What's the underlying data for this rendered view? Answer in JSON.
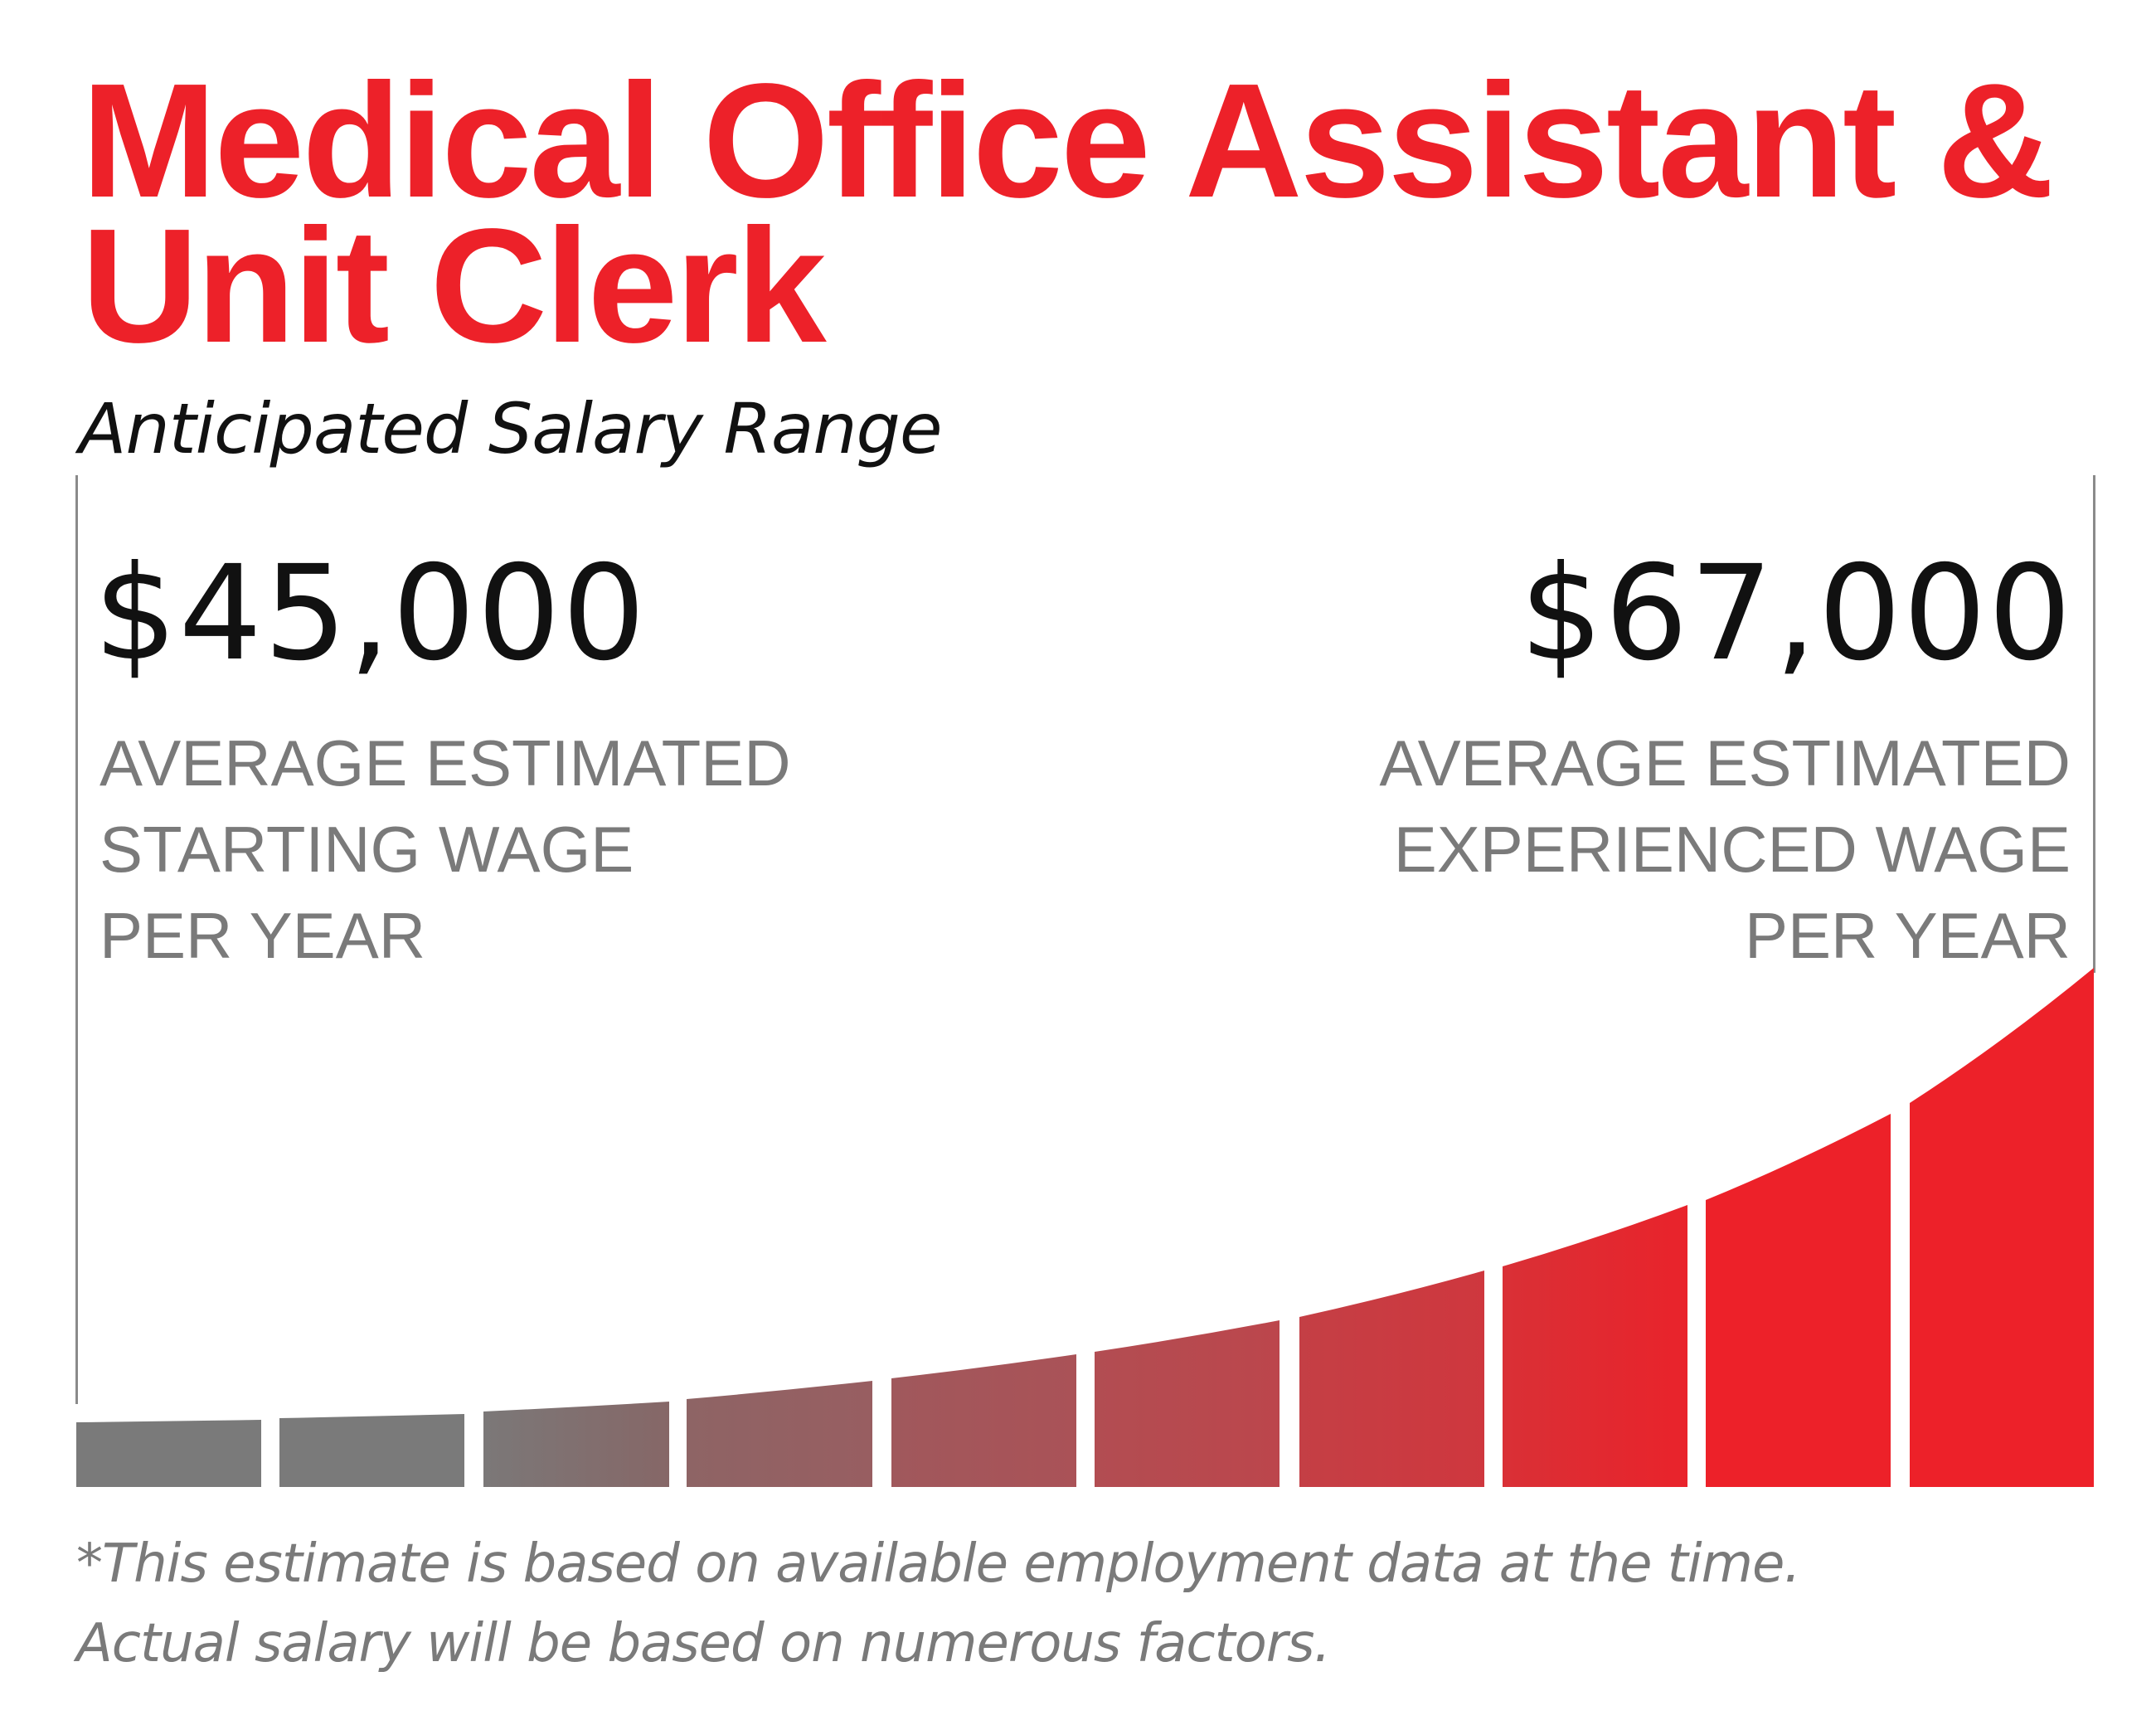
{
  "header": {
    "title_line1": "Medical Office Assistant &",
    "title_line2": "Unit Clerk",
    "subtitle": "Anticipated Salary Range"
  },
  "start": {
    "amount": "$45,000",
    "label_lines": [
      "AVERAGE ESTIMATED",
      "STARTING WAGE",
      "PER YEAR"
    ]
  },
  "end": {
    "amount": "$67,000",
    "label_lines": [
      "AVERAGE ESTIMATED",
      "EXPERIENCED WAGE",
      "PER YEAR"
    ]
  },
  "footnote": {
    "line1": "*This estimate is based on available employment data at the time.",
    "line2": "Actual salary will be based on numerous factors."
  },
  "colors": {
    "accent_red": "#ED2129",
    "gray_text": "#7A7A7A",
    "bar_gray": "#7A7A7A",
    "amount_text": "#111111"
  },
  "chart_data": {
    "type": "bar",
    "title": "Anticipated Salary Range",
    "categories": [
      "1",
      "2",
      "3",
      "4",
      "5",
      "6",
      "7",
      "8",
      "9",
      "10"
    ],
    "values": [
      45000,
      45200,
      45700,
      46600,
      47900,
      49800,
      52300,
      55600,
      60300,
      67000
    ],
    "xlabel": "",
    "ylabel": "",
    "ylim": [
      43000,
      67000
    ],
    "grid": false,
    "legend": null,
    "annotations": [
      {
        "position": "left",
        "text": "$45,000 AVERAGE ESTIMATED STARTING WAGE PER YEAR"
      },
      {
        "position": "right",
        "text": "$67,000 AVERAGE ESTIMATED EXPERIENCED WAGE PER YEAR"
      }
    ],
    "bars": [
      {
        "x0": 92,
        "x1": 315,
        "top_left": 1715,
        "top_right": 1712,
        "c0": "#7A7A7A",
        "c1": "#7A7A7A"
      },
      {
        "x0": 337,
        "x1": 560,
        "top_left": 1710,
        "top_right": 1705,
        "c0": "#7A7A7A",
        "c1": "#7A7A7A"
      },
      {
        "x0": 583,
        "x1": 807,
        "top_left": 1702,
        "top_right": 1690,
        "c0": "#7B7878",
        "c1": "#866767"
      },
      {
        "x0": 828,
        "x1": 1052,
        "top_left": 1687,
        "top_right": 1665,
        "c0": "#8E6465",
        "c1": "#985E61"
      },
      {
        "x0": 1075,
        "x1": 1298,
        "top_left": 1662,
        "top_right": 1633,
        "c0": "#A0585C",
        "c1": "#AA5257"
      },
      {
        "x0": 1320,
        "x1": 1543,
        "top_left": 1630,
        "top_right": 1592,
        "c0": "#B24D52",
        "c1": "#BC464C"
      },
      {
        "x0": 1567,
        "x1": 1790,
        "top_left": 1588,
        "top_right": 1532,
        "c0": "#C43F45",
        "c1": "#CF373E"
      },
      {
        "x0": 1812,
        "x1": 2035,
        "top_left": 1527,
        "top_right": 1453,
        "c0": "#D93036",
        "c1": "#E9232B"
      },
      {
        "x0": 2057,
        "x1": 2280,
        "top_left": 1447,
        "top_right": 1343,
        "c0": "#ED2129",
        "c1": "#ED2129"
      },
      {
        "x0": 2303,
        "x1": 2525,
        "top_left": 1330,
        "top_right": 1167,
        "c0": "#ED2129",
        "c1": "#ED2129"
      }
    ],
    "baseline_y": 1793
  }
}
